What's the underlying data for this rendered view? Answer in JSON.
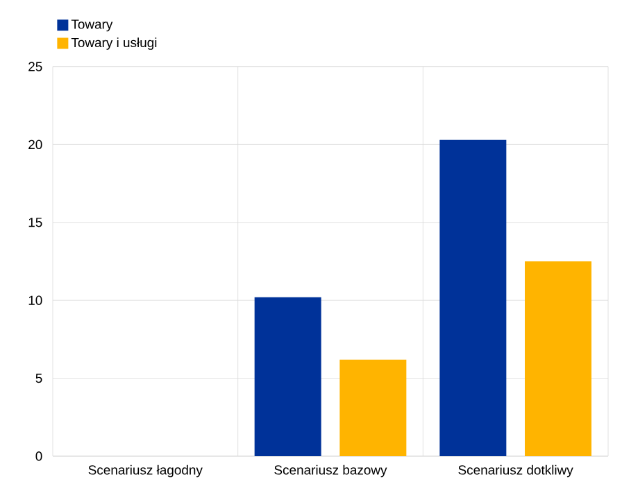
{
  "chart_data": {
    "type": "bar",
    "categories": [
      "Scenariusz łagodny",
      "Scenariusz bazowy",
      "Scenariusz dotkliwy"
    ],
    "series": [
      {
        "name": "Towary",
        "color": "#003299",
        "values": [
          0,
          10.2,
          20.3
        ]
      },
      {
        "name": "Towary i usługi",
        "color": "#ffb400",
        "values": [
          0,
          6.2,
          12.5
        ]
      }
    ],
    "ylim": [
      0,
      25
    ],
    "yticks": [
      0,
      5,
      10,
      15,
      20,
      25
    ],
    "grid": true,
    "legend": "top left"
  }
}
